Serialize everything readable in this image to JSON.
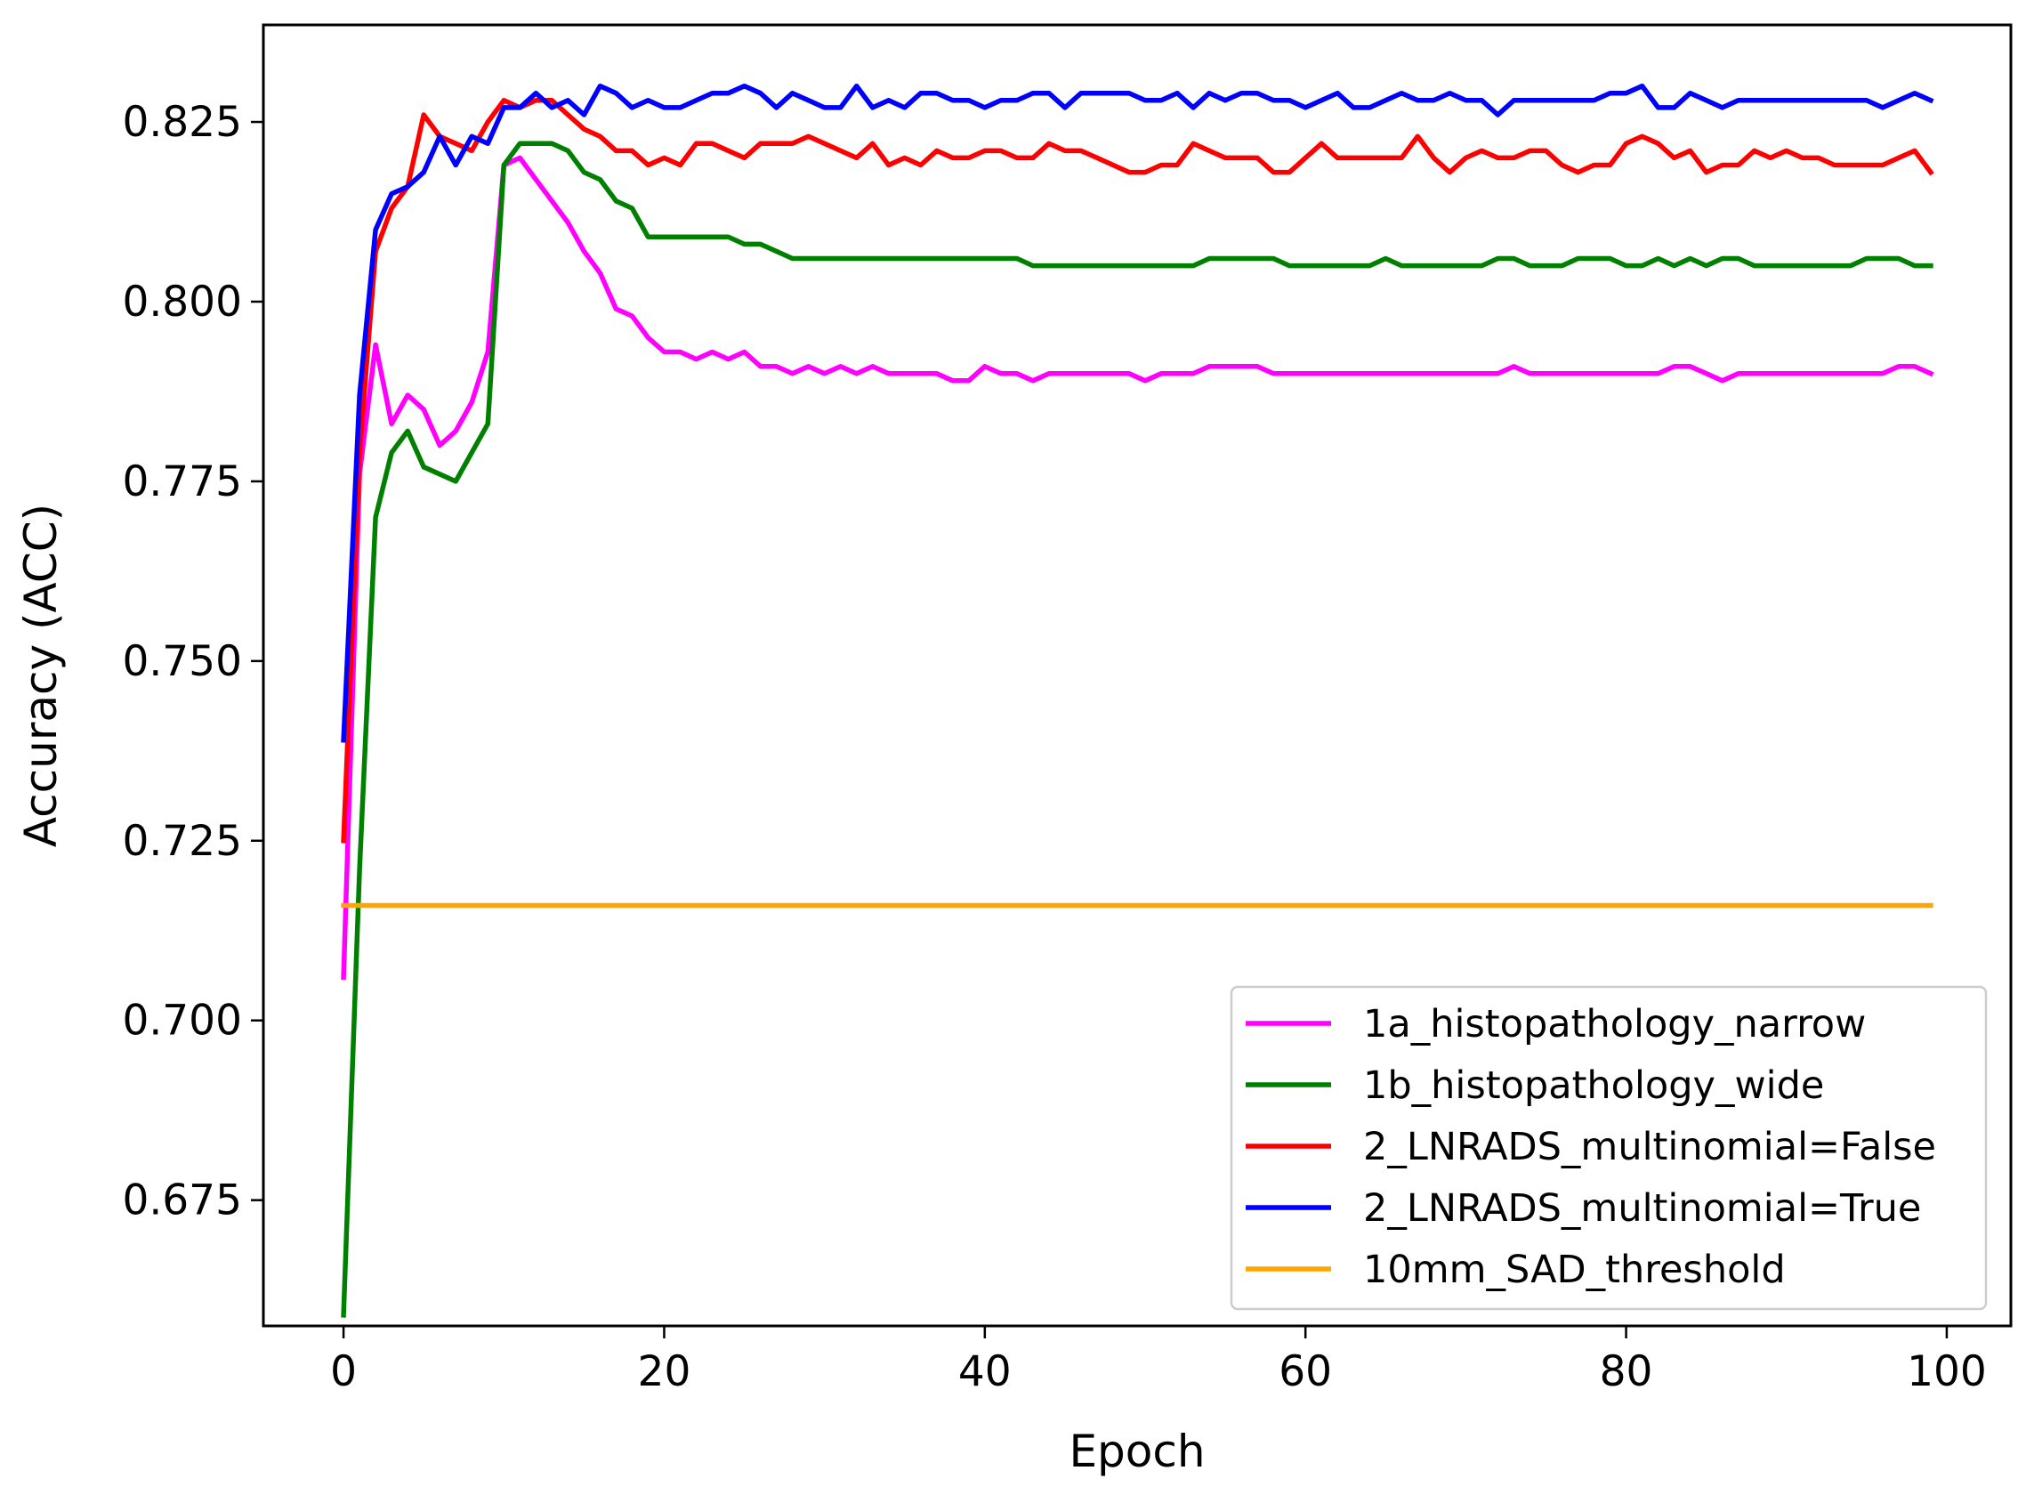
{
  "chart_data": {
    "type": "line",
    "title": "",
    "xlabel": "Epoch",
    "ylabel": "Accuracy (ACC)",
    "xlim": [
      -5,
      104
    ],
    "ylim": [
      0.6575,
      0.8385
    ],
    "xticks": [
      0,
      20,
      40,
      60,
      80,
      100
    ],
    "xtick_labels": [
      "0",
      "20",
      "40",
      "60",
      "80",
      "100"
    ],
    "yticks": [
      0.675,
      0.7,
      0.725,
      0.75,
      0.775,
      0.8,
      0.825
    ],
    "ytick_labels": [
      "0.675",
      "0.700",
      "0.725",
      "0.750",
      "0.775",
      "0.800",
      "0.825"
    ],
    "grid": false,
    "legend": "lower-right",
    "series": [
      {
        "name": "1a_histopathology_narrow",
        "color": "#ff00ff",
        "x": [
          0,
          1,
          2,
          3,
          4,
          5,
          6,
          7,
          8,
          9,
          10,
          11,
          12,
          13,
          14,
          15,
          16,
          17,
          18,
          19,
          20,
          21,
          22,
          23,
          24,
          25,
          26,
          27,
          28,
          29,
          30,
          31,
          32,
          33,
          34,
          35,
          36,
          37,
          38,
          39,
          40,
          41,
          42,
          43,
          44,
          45,
          46,
          47,
          48,
          49,
          50,
          51,
          52,
          53,
          54,
          55,
          56,
          57,
          58,
          59,
          60,
          61,
          62,
          63,
          64,
          65,
          66,
          67,
          68,
          69,
          70,
          71,
          72,
          73,
          74,
          75,
          76,
          77,
          78,
          79,
          80,
          81,
          82,
          83,
          84,
          85,
          86,
          87,
          88,
          89,
          90,
          91,
          92,
          93,
          94,
          95,
          96,
          97,
          98,
          99
        ],
        "values": [
          0.706,
          0.776,
          0.794,
          0.783,
          0.787,
          0.785,
          0.78,
          0.782,
          0.786,
          0.793,
          0.819,
          0.82,
          0.817,
          0.814,
          0.811,
          0.807,
          0.804,
          0.799,
          0.798,
          0.795,
          0.793,
          0.793,
          0.792,
          0.793,
          0.792,
          0.793,
          0.791,
          0.791,
          0.79,
          0.791,
          0.79,
          0.791,
          0.79,
          0.791,
          0.79,
          0.79,
          0.79,
          0.79,
          0.789,
          0.789,
          0.791,
          0.79,
          0.79,
          0.789,
          0.79,
          0.79,
          0.79,
          0.79,
          0.79,
          0.79,
          0.789,
          0.79,
          0.79,
          0.79,
          0.791,
          0.791,
          0.791,
          0.791,
          0.79,
          0.79,
          0.79,
          0.79,
          0.79,
          0.79,
          0.79,
          0.79,
          0.79,
          0.79,
          0.79,
          0.79,
          0.79,
          0.79,
          0.79,
          0.791,
          0.79,
          0.79,
          0.79,
          0.79,
          0.79,
          0.79,
          0.79,
          0.79,
          0.79,
          0.791,
          0.791,
          0.79,
          0.789,
          0.79,
          0.79,
          0.79,
          0.79,
          0.79,
          0.79,
          0.79,
          0.79,
          0.79,
          0.79,
          0.791,
          0.791,
          0.79
        ]
      },
      {
        "name": "1b_histopathology_wide",
        "color": "#008000",
        "x": [
          0,
          1,
          2,
          3,
          4,
          5,
          6,
          7,
          8,
          9,
          10,
          11,
          12,
          13,
          14,
          15,
          16,
          17,
          18,
          19,
          20,
          21,
          22,
          23,
          24,
          25,
          26,
          27,
          28,
          29,
          30,
          31,
          32,
          33,
          34,
          35,
          36,
          37,
          38,
          39,
          40,
          41,
          42,
          43,
          44,
          45,
          46,
          47,
          48,
          49,
          50,
          51,
          52,
          53,
          54,
          55,
          56,
          57,
          58,
          59,
          60,
          61,
          62,
          63,
          64,
          65,
          66,
          67,
          68,
          69,
          70,
          71,
          72,
          73,
          74,
          75,
          76,
          77,
          78,
          79,
          80,
          81,
          82,
          83,
          84,
          85,
          86,
          87,
          88,
          89,
          90,
          91,
          92,
          93,
          94,
          95,
          96,
          97,
          98,
          99
        ],
        "values": [
          0.659,
          0.721,
          0.77,
          0.779,
          0.782,
          0.777,
          0.776,
          0.775,
          0.779,
          0.783,
          0.819,
          0.822,
          0.822,
          0.822,
          0.821,
          0.818,
          0.817,
          0.814,
          0.813,
          0.809,
          0.809,
          0.809,
          0.809,
          0.809,
          0.809,
          0.808,
          0.808,
          0.807,
          0.806,
          0.806,
          0.806,
          0.806,
          0.806,
          0.806,
          0.806,
          0.806,
          0.806,
          0.806,
          0.806,
          0.806,
          0.806,
          0.806,
          0.806,
          0.805,
          0.805,
          0.805,
          0.805,
          0.805,
          0.805,
          0.805,
          0.805,
          0.805,
          0.805,
          0.805,
          0.806,
          0.806,
          0.806,
          0.806,
          0.806,
          0.805,
          0.805,
          0.805,
          0.805,
          0.805,
          0.805,
          0.806,
          0.805,
          0.805,
          0.805,
          0.805,
          0.805,
          0.805,
          0.806,
          0.806,
          0.805,
          0.805,
          0.805,
          0.806,
          0.806,
          0.806,
          0.805,
          0.805,
          0.806,
          0.805,
          0.806,
          0.805,
          0.806,
          0.806,
          0.805,
          0.805,
          0.805,
          0.805,
          0.805,
          0.805,
          0.805,
          0.806,
          0.806,
          0.806,
          0.805,
          0.805
        ]
      },
      {
        "name": "2_LNRADS_multinomial=False",
        "color": "#ff0000",
        "x": [
          0,
          1,
          2,
          3,
          4,
          5,
          6,
          7,
          8,
          9,
          10,
          11,
          12,
          13,
          14,
          15,
          16,
          17,
          18,
          19,
          20,
          21,
          22,
          23,
          24,
          25,
          26,
          27,
          28,
          29,
          30,
          31,
          32,
          33,
          34,
          35,
          36,
          37,
          38,
          39,
          40,
          41,
          42,
          43,
          44,
          45,
          46,
          47,
          48,
          49,
          50,
          51,
          52,
          53,
          54,
          55,
          56,
          57,
          58,
          59,
          60,
          61,
          62,
          63,
          64,
          65,
          66,
          67,
          68,
          69,
          70,
          71,
          72,
          73,
          74,
          75,
          76,
          77,
          78,
          79,
          80,
          81,
          82,
          83,
          84,
          85,
          86,
          87,
          88,
          89,
          90,
          91,
          92,
          93,
          94,
          95,
          96,
          97,
          98,
          99
        ],
        "values": [
          0.725,
          0.779,
          0.807,
          0.813,
          0.816,
          0.826,
          0.823,
          0.822,
          0.821,
          0.825,
          0.828,
          0.827,
          0.828,
          0.828,
          0.826,
          0.824,
          0.823,
          0.821,
          0.821,
          0.819,
          0.82,
          0.819,
          0.822,
          0.822,
          0.821,
          0.82,
          0.822,
          0.822,
          0.822,
          0.823,
          0.822,
          0.821,
          0.82,
          0.822,
          0.819,
          0.82,
          0.819,
          0.821,
          0.82,
          0.82,
          0.821,
          0.821,
          0.82,
          0.82,
          0.822,
          0.821,
          0.821,
          0.82,
          0.819,
          0.818,
          0.818,
          0.819,
          0.819,
          0.822,
          0.821,
          0.82,
          0.82,
          0.82,
          0.818,
          0.818,
          0.82,
          0.822,
          0.82,
          0.82,
          0.82,
          0.82,
          0.82,
          0.823,
          0.82,
          0.818,
          0.82,
          0.821,
          0.82,
          0.82,
          0.821,
          0.821,
          0.819,
          0.818,
          0.819,
          0.819,
          0.822,
          0.823,
          0.822,
          0.82,
          0.821,
          0.818,
          0.819,
          0.819,
          0.821,
          0.82,
          0.821,
          0.82,
          0.82,
          0.819,
          0.819,
          0.819,
          0.819,
          0.82,
          0.821,
          0.818
        ]
      },
      {
        "name": "2_LNRADS_multinomial=True",
        "color": "#0000ff",
        "x": [
          0,
          1,
          2,
          3,
          4,
          5,
          6,
          7,
          8,
          9,
          10,
          11,
          12,
          13,
          14,
          15,
          16,
          17,
          18,
          19,
          20,
          21,
          22,
          23,
          24,
          25,
          26,
          27,
          28,
          29,
          30,
          31,
          32,
          33,
          34,
          35,
          36,
          37,
          38,
          39,
          40,
          41,
          42,
          43,
          44,
          45,
          46,
          47,
          48,
          49,
          50,
          51,
          52,
          53,
          54,
          55,
          56,
          57,
          58,
          59,
          60,
          61,
          62,
          63,
          64,
          65,
          66,
          67,
          68,
          69,
          70,
          71,
          72,
          73,
          74,
          75,
          76,
          77,
          78,
          79,
          80,
          81,
          82,
          83,
          84,
          85,
          86,
          87,
          88,
          89,
          90,
          91,
          92,
          93,
          94,
          95,
          96,
          97,
          98,
          99
        ],
        "values": [
          0.739,
          0.787,
          0.81,
          0.815,
          0.816,
          0.818,
          0.823,
          0.819,
          0.823,
          0.822,
          0.827,
          0.827,
          0.829,
          0.827,
          0.828,
          0.826,
          0.83,
          0.829,
          0.827,
          0.828,
          0.827,
          0.827,
          0.828,
          0.829,
          0.829,
          0.83,
          0.829,
          0.827,
          0.829,
          0.828,
          0.827,
          0.827,
          0.83,
          0.827,
          0.828,
          0.827,
          0.829,
          0.829,
          0.828,
          0.828,
          0.827,
          0.828,
          0.828,
          0.829,
          0.829,
          0.827,
          0.829,
          0.829,
          0.829,
          0.829,
          0.828,
          0.828,
          0.829,
          0.827,
          0.829,
          0.828,
          0.829,
          0.829,
          0.828,
          0.828,
          0.827,
          0.828,
          0.829,
          0.827,
          0.827,
          0.828,
          0.829,
          0.828,
          0.828,
          0.829,
          0.828,
          0.828,
          0.826,
          0.828,
          0.828,
          0.828,
          0.828,
          0.828,
          0.828,
          0.829,
          0.829,
          0.83,
          0.827,
          0.827,
          0.829,
          0.828,
          0.827,
          0.828,
          0.828,
          0.828,
          0.828,
          0.828,
          0.828,
          0.828,
          0.828,
          0.828,
          0.827,
          0.828,
          0.829,
          0.828
        ]
      },
      {
        "name": "10mm_SAD_threshold",
        "color": "#ffa500",
        "x": [
          0,
          99
        ],
        "values": [
          0.716,
          0.716
        ]
      }
    ]
  }
}
